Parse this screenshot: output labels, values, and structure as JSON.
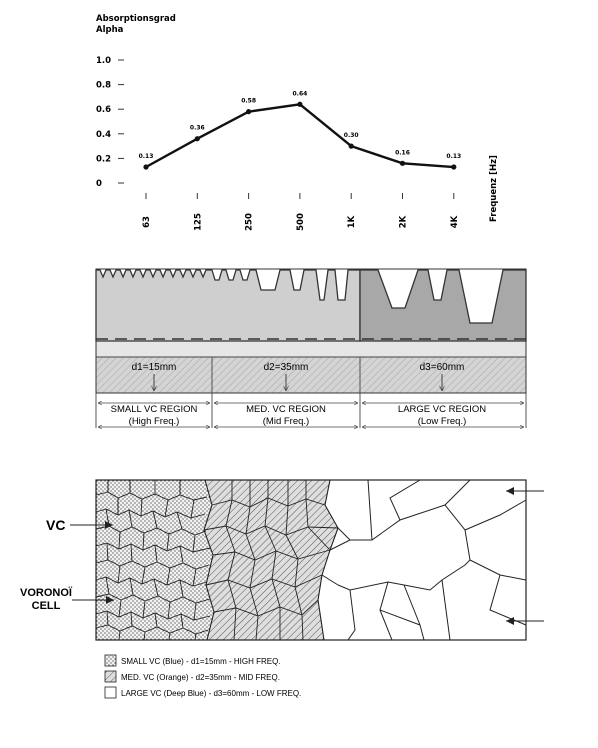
{
  "chart_data": {
    "type": "line",
    "title": "Absorptionsgrad",
    "subtitle": "Alpha",
    "xlabel": "Frequenz [Hz]",
    "ylabel": "",
    "categories": [
      "63",
      "125",
      "250",
      "500",
      "1K",
      "2K",
      "4K"
    ],
    "values": [
      0.13,
      0.36,
      0.58,
      0.64,
      0.3,
      0.16,
      0.13
    ],
    "value_labels": [
      "0.13",
      "0.36",
      "0.58",
      "0.64",
      "0.30",
      "0.16",
      "0.13"
    ],
    "yticks": [
      "0",
      "0.2",
      "0.4",
      "0.6",
      "0.8",
      "1.0"
    ],
    "ytick_values": [
      0,
      0.2,
      0.4,
      0.6,
      0.8,
      1.0
    ],
    "ylim": [
      0,
      1.0
    ],
    "grid": false,
    "legend": "none"
  },
  "section": {
    "d1": "d1=15mm",
    "d2": "d2=35mm",
    "d3": "d3=60mm",
    "regions": [
      {
        "name": "SMALL VC REGION",
        "sub": "(High Freq.)"
      },
      {
        "name": "MED. VC REGION",
        "sub": "(Mid Freq.)"
      },
      {
        "name": "LARGE VC REGION",
        "sub": "(Low Freq.)"
      }
    ]
  },
  "voronoi": {
    "label_vc": "VC",
    "label_cell_1": "VORONOÏ",
    "label_cell_2": "CELL"
  },
  "legend": {
    "items": [
      {
        "text": "SMALL VC (Blue)  - d1=15mm - HIGH FREQ."
      },
      {
        "text": "MED. VC (Orange) - d2=35mm - MID FREQ."
      },
      {
        "text": "LARGE VC (Deep Blue) - d3=60mm - LOW FREQ."
      }
    ]
  }
}
